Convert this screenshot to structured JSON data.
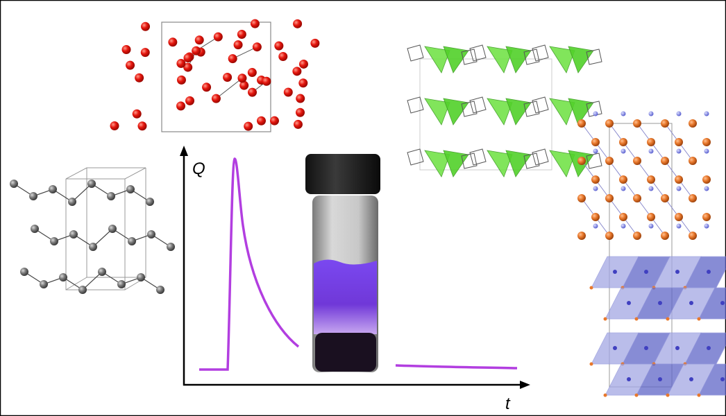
{
  "figure": {
    "y_axis_label": "Q",
    "x_axis_label": "t"
  }
}
